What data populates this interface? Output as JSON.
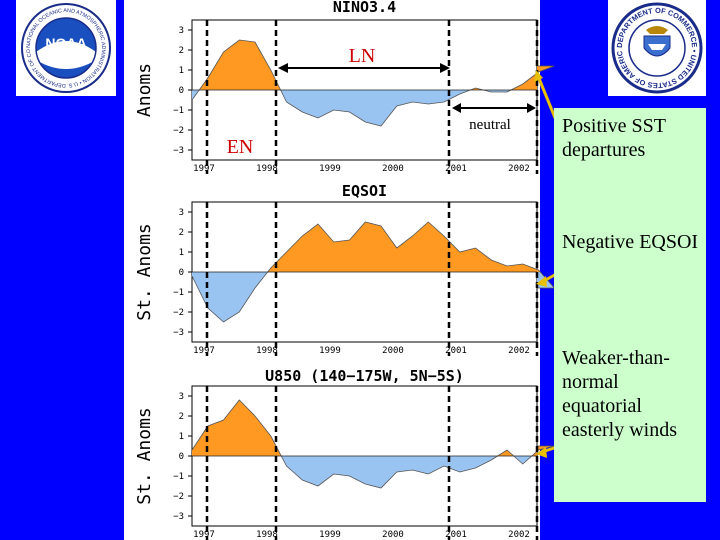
{
  "chart_data": [
    {
      "type": "area",
      "title": "NINO3.4",
      "ylabel": "Anoms",
      "ylim": [
        -3.5,
        3.5
      ],
      "yticks": [
        "3",
        "2",
        "1",
        "0",
        "−1",
        "−2",
        "−3"
      ],
      "xticks": [
        "1997",
        "1998",
        "1999",
        "2000",
        "2001",
        "2002"
      ],
      "x": [
        1997.0,
        1997.25,
        1997.5,
        1997.75,
        1998.0,
        1998.25,
        1998.5,
        1998.75,
        1999.0,
        1999.25,
        1999.5,
        1999.75,
        2000.0,
        2000.25,
        2000.5,
        2000.75,
        2001.0,
        2001.25,
        2001.5,
        2001.75,
        2002.0,
        2002.25,
        2002.5,
        2002.75
      ],
      "values": [
        -0.5,
        0.6,
        1.9,
        2.5,
        2.4,
        1.0,
        -0.6,
        -1.1,
        -1.4,
        -1.0,
        -1.1,
        -1.6,
        -1.8,
        -0.8,
        -0.6,
        -0.7,
        -0.6,
        -0.2,
        0.1,
        -0.1,
        -0.1,
        0.3,
        0.9,
        1.2
      ]
    },
    {
      "type": "area",
      "title": "EQSOI",
      "ylabel": "St. Anoms",
      "ylim": [
        -3.5,
        3.5
      ],
      "yticks": [
        "3",
        "2",
        "1",
        "0",
        "−1",
        "−2",
        "−3"
      ],
      "xticks": [
        "1997",
        "1998",
        "1999",
        "2000",
        "2001",
        "2002"
      ],
      "x": [
        1997.0,
        1997.25,
        1997.5,
        1997.75,
        1998.0,
        1998.25,
        1998.5,
        1998.75,
        1999.0,
        1999.25,
        1999.5,
        1999.75,
        2000.0,
        2000.25,
        2000.5,
        2000.75,
        2001.0,
        2001.25,
        2001.5,
        2001.75,
        2002.0,
        2002.25,
        2002.5,
        2002.75
      ],
      "values": [
        -0.2,
        -1.8,
        -2.5,
        -2.0,
        -0.8,
        0.2,
        1.0,
        1.8,
        2.4,
        1.5,
        1.6,
        2.5,
        2.3,
        1.2,
        1.8,
        2.5,
        1.8,
        1.0,
        1.2,
        0.6,
        0.3,
        0.4,
        0.1,
        -0.8
      ]
    },
    {
      "type": "area",
      "title": "U850 (140−175W, 5N−5S)",
      "ylabel": "St. Anoms",
      "ylim": [
        -3.5,
        3.5
      ],
      "yticks": [
        "3",
        "2",
        "1",
        "0",
        "−1",
        "−2",
        "−3"
      ],
      "xticks": [
        "1997",
        "1998",
        "1999",
        "2000",
        "2001",
        "2002"
      ],
      "x": [
        1997.0,
        1997.25,
        1997.5,
        1997.75,
        1998.0,
        1998.25,
        1998.5,
        1998.75,
        1999.0,
        1999.25,
        1999.5,
        1999.75,
        2000.0,
        2000.25,
        2000.5,
        2000.75,
        2001.0,
        2001.25,
        2001.5,
        2001.75,
        2002.0,
        2002.25,
        2002.5,
        2002.75
      ],
      "values": [
        0.3,
        1.5,
        1.8,
        2.8,
        2.0,
        1.0,
        -0.5,
        -1.2,
        -1.5,
        -0.9,
        -1.0,
        -1.4,
        -1.6,
        -0.8,
        -0.7,
        -0.9,
        -0.5,
        -0.8,
        -0.6,
        -0.2,
        0.3,
        -0.4,
        0.3,
        0.5
      ]
    }
  ],
  "annotations": {
    "ln": "LN",
    "en": "EN",
    "neutral": "neutral"
  },
  "side_notes": [
    "Positive SST departures",
    "Negative EQSOI",
    "Weaker-than-normal equatorial easterly winds"
  ],
  "logos": {
    "noaa_text": "NOAA",
    "noaa_ring": "NATIONAL OCEANIC AND ATMOSPHERIC ADMINISTRATION • U.S. DEPARTMENT OF COMMERCE",
    "doc_ring": "DEPARTMENT OF COMMERCE • UNITED STATES OF AMERICA"
  },
  "colors": {
    "positive": "#ff9922",
    "negative": "#99c4f2",
    "background": "#0000ff",
    "arrow": "#e8c000",
    "annotation": "#cc0000",
    "side_box": "#ccffcc"
  }
}
